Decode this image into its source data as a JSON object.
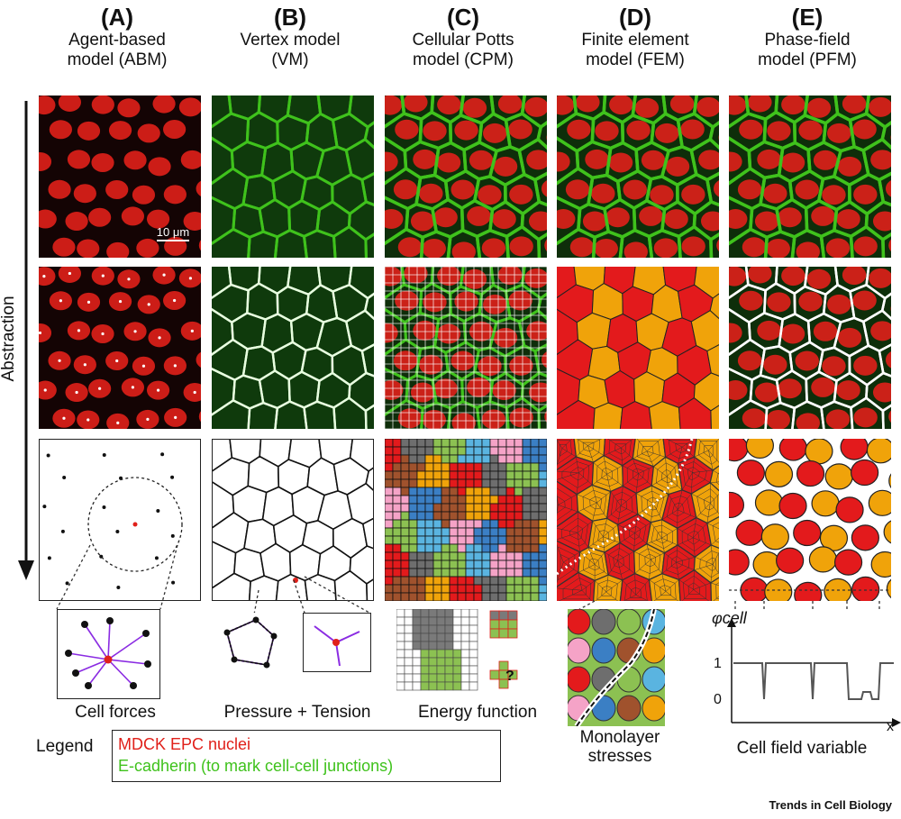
{
  "columns": [
    {
      "letter": "(A)",
      "name_line1": "Agent-based",
      "name_line2": "model (ABM)",
      "caption": "Cell forces"
    },
    {
      "letter": "(B)",
      "name_line1": "Vertex model",
      "name_line2": "(VM)",
      "caption": "Pressure + Tension"
    },
    {
      "letter": "(C)",
      "name_line1": "Cellular Potts",
      "name_line2": "model (CPM)",
      "caption": "Energy function"
    },
    {
      "letter": "(D)",
      "name_line1": "Finite element",
      "name_line2": "model (FEM)",
      "caption_line1": "Monolayer",
      "caption_line2": "stresses"
    },
    {
      "letter": "(E)",
      "name_line1": "Phase-field",
      "name_line2": "model (PFM)",
      "caption": "Cell field variable"
    }
  ],
  "abstraction_label": "Abstraction",
  "scale_bar": "10 μm",
  "phase_plot": {
    "y_axis_label": "φcell",
    "x_axis_label": "x",
    "tick_1": "1",
    "tick_0": "0"
  },
  "inset_question": "?",
  "legend": {
    "title": "Legend",
    "item1": "MDCK EPC nuclei",
    "item2": "E-cadherin (to mark cell-cell junctions)"
  },
  "credit": "Trends in Cell Biology",
  "colors": {
    "nuclei": "#e0201a",
    "ecadherin": "#3fc21c",
    "cell_palette": [
      "#e31a1c",
      "#3b7fc4",
      "#8cc152",
      "#f0a30a",
      "#f5a3c7",
      "#6e6e6e",
      "#a0522d",
      "#5ab4e0"
    ]
  }
}
